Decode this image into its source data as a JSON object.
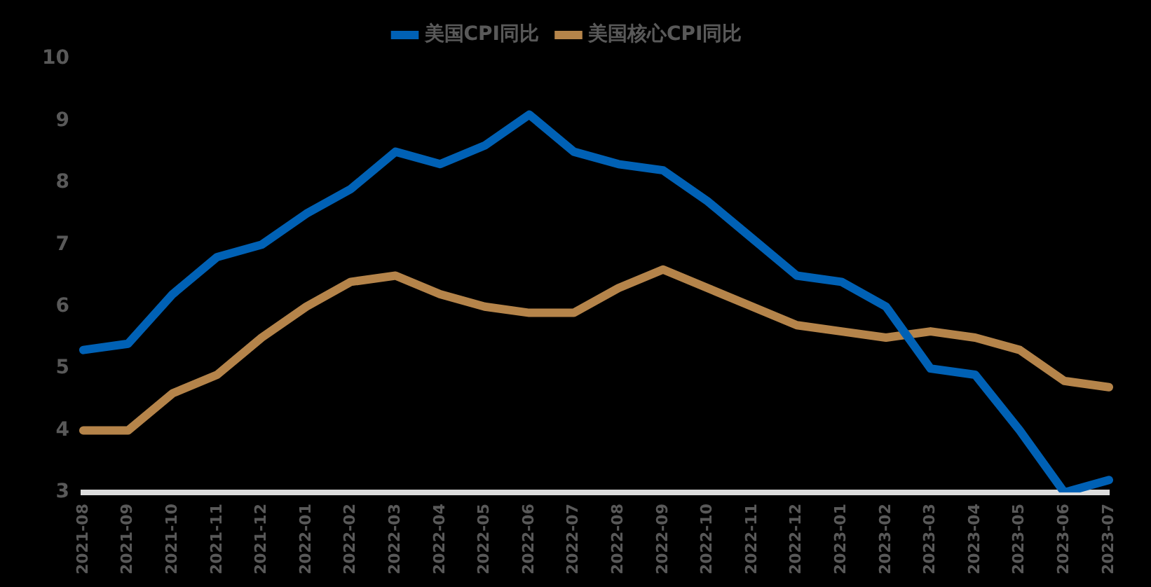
{
  "chart_data": {
    "type": "line",
    "categories": [
      "2021-08",
      "2021-09",
      "2021-10",
      "2021-11",
      "2021-12",
      "2022-01",
      "2022-02",
      "2022-03",
      "2022-04",
      "2022-05",
      "2022-06",
      "2022-07",
      "2022-08",
      "2022-09",
      "2022-10",
      "2022-11",
      "2022-12",
      "2023-01",
      "2023-02",
      "2023-03",
      "2023-04",
      "2023-05",
      "2023-06",
      "2023-07"
    ],
    "series": [
      {
        "name": "美国CPI同比",
        "color": "#0061b5",
        "values": [
          5.3,
          5.4,
          6.2,
          6.8,
          7.0,
          7.5,
          7.9,
          8.5,
          8.3,
          8.6,
          9.1,
          8.5,
          8.3,
          8.2,
          7.7,
          7.1,
          6.5,
          6.4,
          6.0,
          5.0,
          4.9,
          4.0,
          3.0,
          3.2
        ]
      },
      {
        "name": "美国核心CPI同比",
        "color": "#b5844a",
        "values": [
          4.0,
          4.0,
          4.6,
          4.9,
          5.5,
          6.0,
          6.4,
          6.5,
          6.2,
          6.0,
          5.9,
          5.9,
          6.3,
          6.6,
          6.3,
          6.0,
          5.7,
          5.6,
          5.5,
          5.6,
          5.5,
          5.3,
          4.8,
          4.7
        ]
      }
    ],
    "ylim": [
      3,
      10
    ],
    "yticks": [
      3,
      4,
      5,
      6,
      7,
      8,
      9,
      10
    ],
    "grid": false,
    "legend": "top",
    "marker": "none",
    "line_style": "solid"
  }
}
